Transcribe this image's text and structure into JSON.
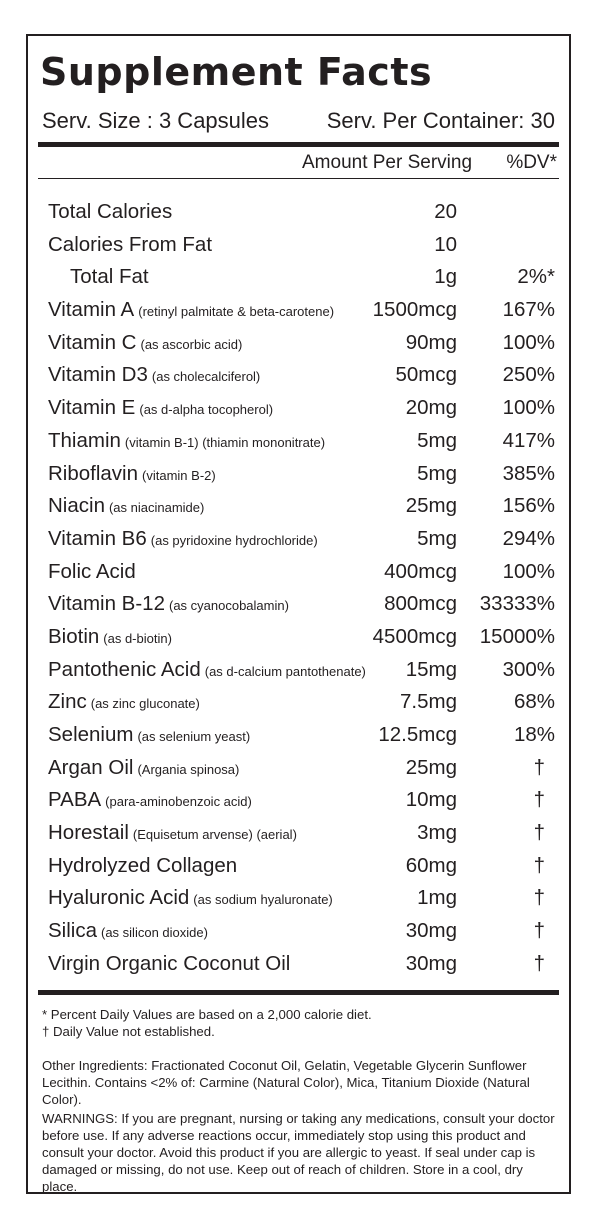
{
  "title": "Supplement Facts",
  "serving_size": "Serv. Size : 3 Capsules",
  "servings_per_container": "Serv. Per Container: 30",
  "header": {
    "amount": "Amount Per Serving",
    "dv": "%DV*"
  },
  "rows": [
    {
      "name": "Total Calories",
      "desc": "",
      "amount": "20",
      "dv": "",
      "indent": false
    },
    {
      "name": "Calories From Fat",
      "desc": "",
      "amount": "10",
      "dv": "",
      "indent": false
    },
    {
      "name": "Total Fat",
      "desc": "",
      "amount": "1g",
      "dv": "2%*",
      "indent": true
    },
    {
      "name": "Vitamin A",
      "desc": "(retinyl palmitate & beta-carotene)",
      "amount": "1500mcg",
      "dv": "167%",
      "indent": false
    },
    {
      "name": "Vitamin C",
      "desc": "(as ascorbic acid)",
      "amount": "90mg",
      "dv": "100%",
      "indent": false
    },
    {
      "name": "Vitamin D3",
      "desc": "(as cholecalciferol)",
      "amount": "50mcg",
      "dv": "250%",
      "indent": false
    },
    {
      "name": "Vitamin E",
      "desc": "(as d-alpha tocopherol)",
      "amount": "20mg",
      "dv": "100%",
      "indent": false
    },
    {
      "name": "Thiamin",
      "desc": "(vitamin B-1) (thiamin mononitrate)",
      "amount": "5mg",
      "dv": "417%",
      "indent": false
    },
    {
      "name": "Riboflavin",
      "desc": "(vitamin B-2)",
      "amount": "5mg",
      "dv": "385%",
      "indent": false
    },
    {
      "name": "Niacin",
      "desc": "(as niacinamide)",
      "amount": "25mg",
      "dv": "156%",
      "indent": false
    },
    {
      "name": "Vitamin B6",
      "desc": "(as pyridoxine hydrochloride)",
      "amount": "5mg",
      "dv": "294%",
      "indent": false
    },
    {
      "name": "Folic Acid",
      "desc": "",
      "amount": "400mcg",
      "dv": "100%",
      "indent": false
    },
    {
      "name": "Vitamin B-12",
      "desc": "(as cyanocobalamin)",
      "amount": "800mcg",
      "dv": "33333%",
      "indent": false
    },
    {
      "name": "Biotin",
      "desc": "(as d-biotin)",
      "amount": "4500mcg",
      "dv": "15000%",
      "indent": false
    },
    {
      "name": "Pantothenic Acid",
      "desc": "(as d-calcium pantothenate)",
      "amount": "15mg",
      "dv": "300%",
      "indent": false
    },
    {
      "name": "Zinc",
      "desc": "(as zinc gluconate)",
      "amount": "7.5mg",
      "dv": "68%",
      "indent": false
    },
    {
      "name": "Selenium",
      "desc": "(as selenium yeast)",
      "amount": "12.5mcg",
      "dv": "18%",
      "indent": false
    },
    {
      "name": "Argan Oil",
      "desc": "(Argania spinosa)",
      "amount": "25mg",
      "dv": "†",
      "indent": false
    },
    {
      "name": "PABA",
      "desc": "(para-aminobenzoic acid)",
      "amount": "10mg",
      "dv": "†",
      "indent": false
    },
    {
      "name": "Horestail",
      "desc": "(Equisetum arvense) (aerial)",
      "amount": "3mg",
      "dv": "†",
      "indent": false
    },
    {
      "name": "Hydrolyzed Collagen",
      "desc": "",
      "amount": "60mg",
      "dv": "†",
      "indent": false
    },
    {
      "name": "Hyaluronic Acid",
      "desc": "(as sodium hyaluronate)",
      "amount": "1mg",
      "dv": "†",
      "indent": false
    },
    {
      "name": "Silica",
      "desc": "(as silicon dioxide)",
      "amount": "30mg",
      "dv": "†",
      "indent": false
    },
    {
      "name": "Virgin Organic Coconut Oil",
      "desc": "",
      "amount": "30mg",
      "dv": "†",
      "indent": false
    }
  ],
  "footnotes": {
    "percent": "* Percent Daily Values are based on a 2,000 calorie diet.",
    "dagger": "† Daily Value not established."
  },
  "other_ingredients": "Other Ingredients: Fractionated Coconut Oil, Gelatin, Vegetable Glycerin Sunflower Lecithin. Contains <2% of: Carmine (Natural Color), Mica, Titanium Dioxide (Natural Color).",
  "warnings": "WARNINGS: If you are pregnant, nursing or taking any medications, consult your doctor before use. If any adverse reactions occur, immediately stop using this product and consult your doctor. Avoid this product if you are allergic to yeast. If seal under cap is damaged or missing, do not use. Keep out of reach of children. Store in a cool, dry place."
}
